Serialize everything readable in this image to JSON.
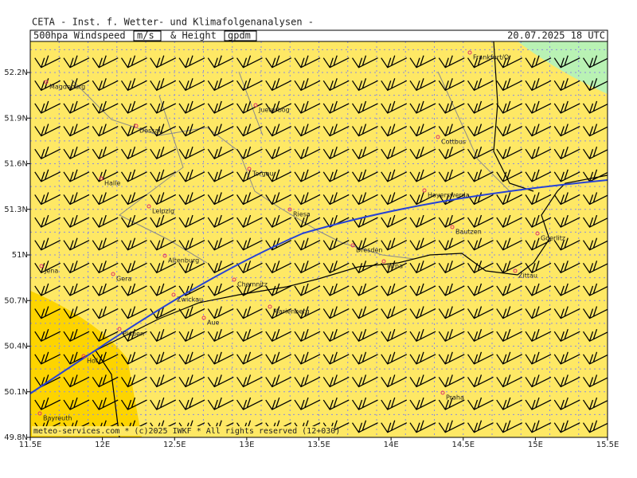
{
  "header": {
    "title": "CETA - Inst. f. Wetter- und Klimafolgenanalysen -",
    "parameter": "500hpa Windspeed",
    "unit1": "m/s",
    "joiner": "& Height",
    "unit2": "gpdm",
    "valid_time": "20.07.2025 18 UTC"
  },
  "footer": "meteo-services.com * (c)2025 IWKF * All rights reserved (12+030)",
  "axes": {
    "lon_ticks": [
      {
        "value": 11.5,
        "label": "11.5E"
      },
      {
        "value": 12,
        "label": "12E"
      },
      {
        "value": 12.5,
        "label": "12.5E"
      },
      {
        "value": 13,
        "label": "13E"
      },
      {
        "value": 13.5,
        "label": "13.5E"
      },
      {
        "value": 14,
        "label": "14E"
      },
      {
        "value": 14.5,
        "label": "14.5E"
      },
      {
        "value": 15,
        "label": "15E"
      },
      {
        "value": 15.5,
        "label": "15.5E"
      }
    ],
    "lat_ticks": [
      {
        "value": 52.2,
        "label": "52.2N"
      },
      {
        "value": 51.9,
        "label": "51.9N"
      },
      {
        "value": 51.6,
        "label": "51.6N"
      },
      {
        "value": 51.3,
        "label": "51.3N"
      },
      {
        "value": 51,
        "label": "51N"
      },
      {
        "value": 50.7,
        "label": "50.7N"
      },
      {
        "value": 50.4,
        "label": "50.4N"
      },
      {
        "value": 50.1,
        "label": "50.1N"
      },
      {
        "value": 49.8,
        "label": "49.8N"
      }
    ]
  },
  "cities": [
    "Magdeburg",
    "Jueterbog",
    "Dessau",
    "Cottbus",
    "Frankfurt/O.",
    "Torgau",
    "Halle",
    "Hoyerswerda",
    "Leipzig",
    "Riesa",
    "Bautzen",
    "Goerlitz",
    "Dresden",
    "Pirna",
    "Zittau",
    "Altenburg",
    "Jena",
    "Gera",
    "Chemnitz",
    "Zwickau",
    "Marienberg",
    "Aue",
    "Plauen",
    "Hof",
    "Praha",
    "Bayreuth"
  ]
}
